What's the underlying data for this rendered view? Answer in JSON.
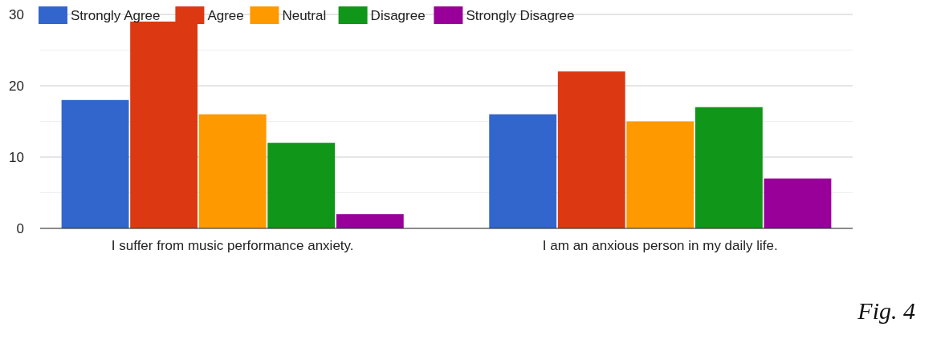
{
  "chart_data": {
    "type": "bar",
    "categories": [
      "I suffer from music performance anxiety.",
      "I am an anxious person in my daily life."
    ],
    "series": [
      {
        "name": "Strongly Agree",
        "color": "#3366cc",
        "values": [
          18,
          16
        ]
      },
      {
        "name": "Agree",
        "color": "#dc3912",
        "values": [
          29,
          22
        ]
      },
      {
        "name": "Neutral",
        "color": "#ff9900",
        "values": [
          16,
          15
        ]
      },
      {
        "name": "Disagree",
        "color": "#109618",
        "values": [
          12,
          17
        ]
      },
      {
        "name": "Strongly Disagree",
        "color": "#990099",
        "values": [
          2,
          7
        ]
      }
    ],
    "ylim": [
      0,
      30
    ],
    "yticks": [
      0,
      {
        "value": 5,
        "label": null
      },
      10,
      {
        "value": 15,
        "label": null
      },
      20,
      {
        "value": 25,
        "label": null
      },
      30
    ],
    "grid": true,
    "legend": "top left",
    "annotations": [
      "Fig. 4"
    ]
  }
}
